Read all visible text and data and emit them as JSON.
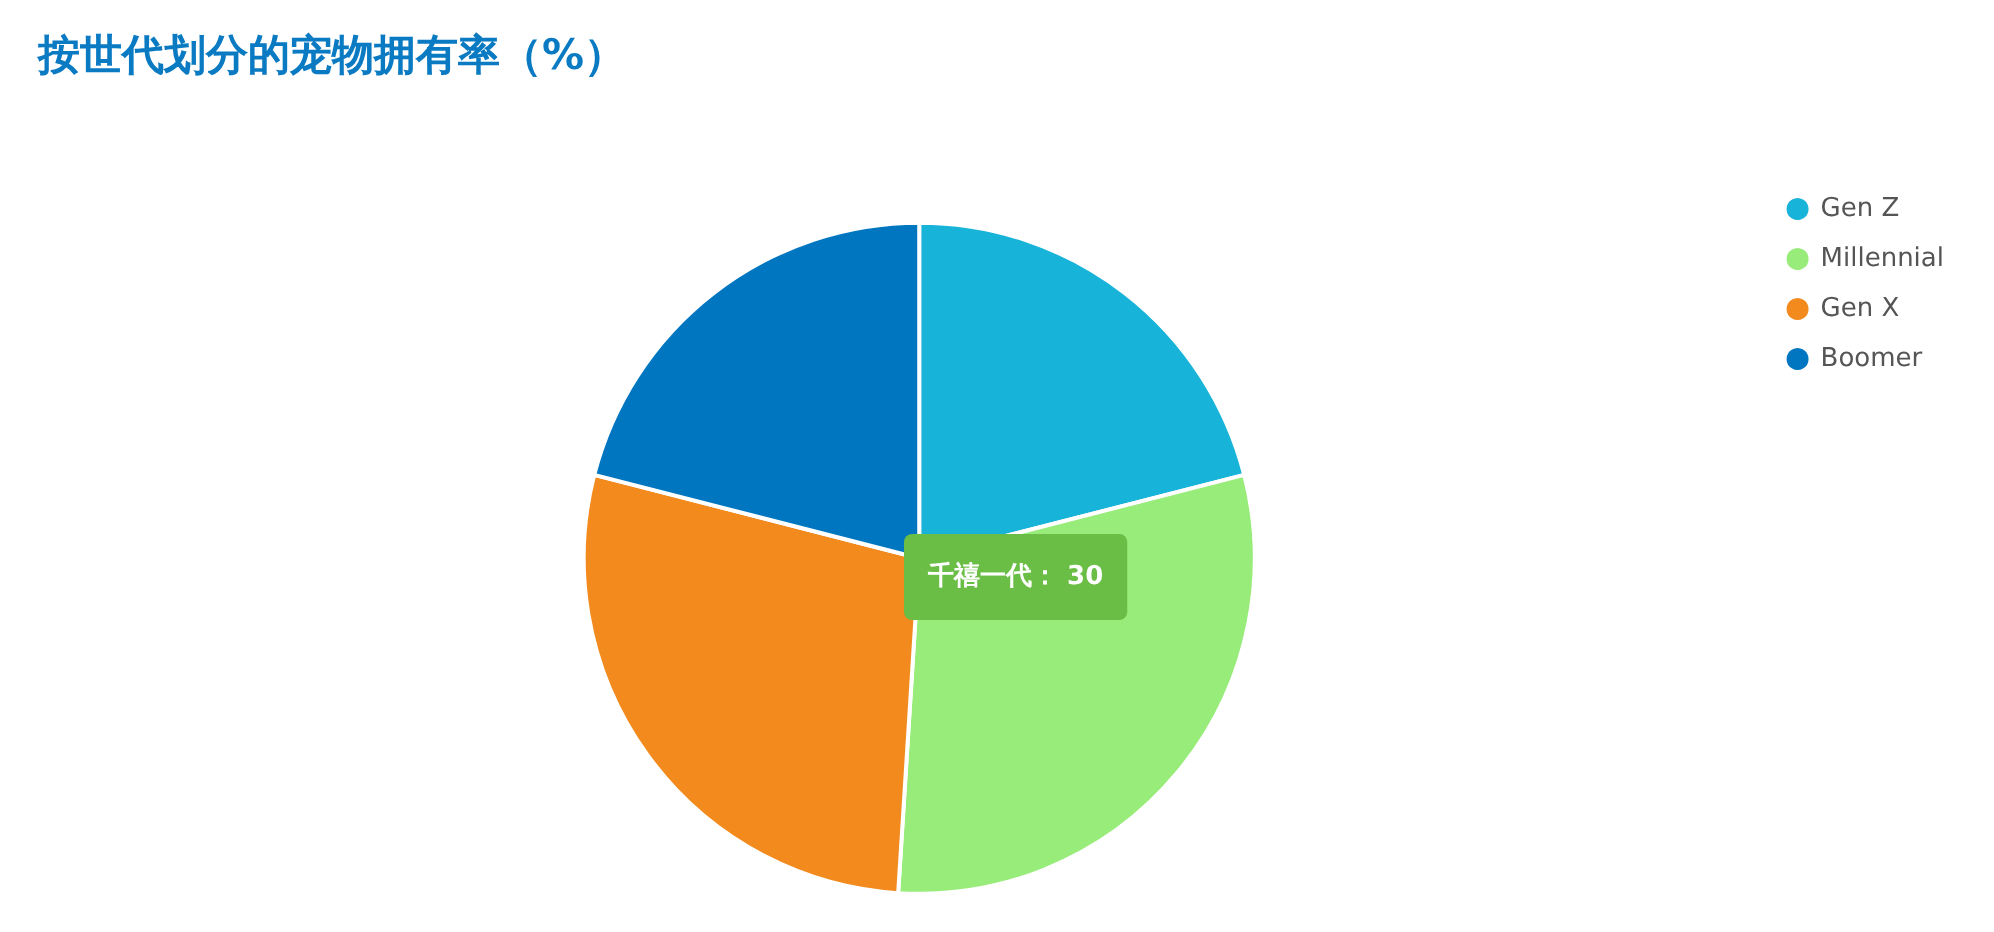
{
  "chart_data": {
    "type": "pie",
    "title": "按世代划分的宠物拥有率（%）",
    "categories": [
      "Gen Z",
      "Millennial",
      "Gen X",
      "Boomer"
    ],
    "values": [
      21,
      30,
      28,
      21
    ],
    "colors": [
      "#17b3d8",
      "#98ec7a",
      "#f28a1e",
      "#0076c0"
    ],
    "value_labels": [
      null,
      "千禧一代： 30",
      null,
      null
    ],
    "legend": "top right"
  }
}
